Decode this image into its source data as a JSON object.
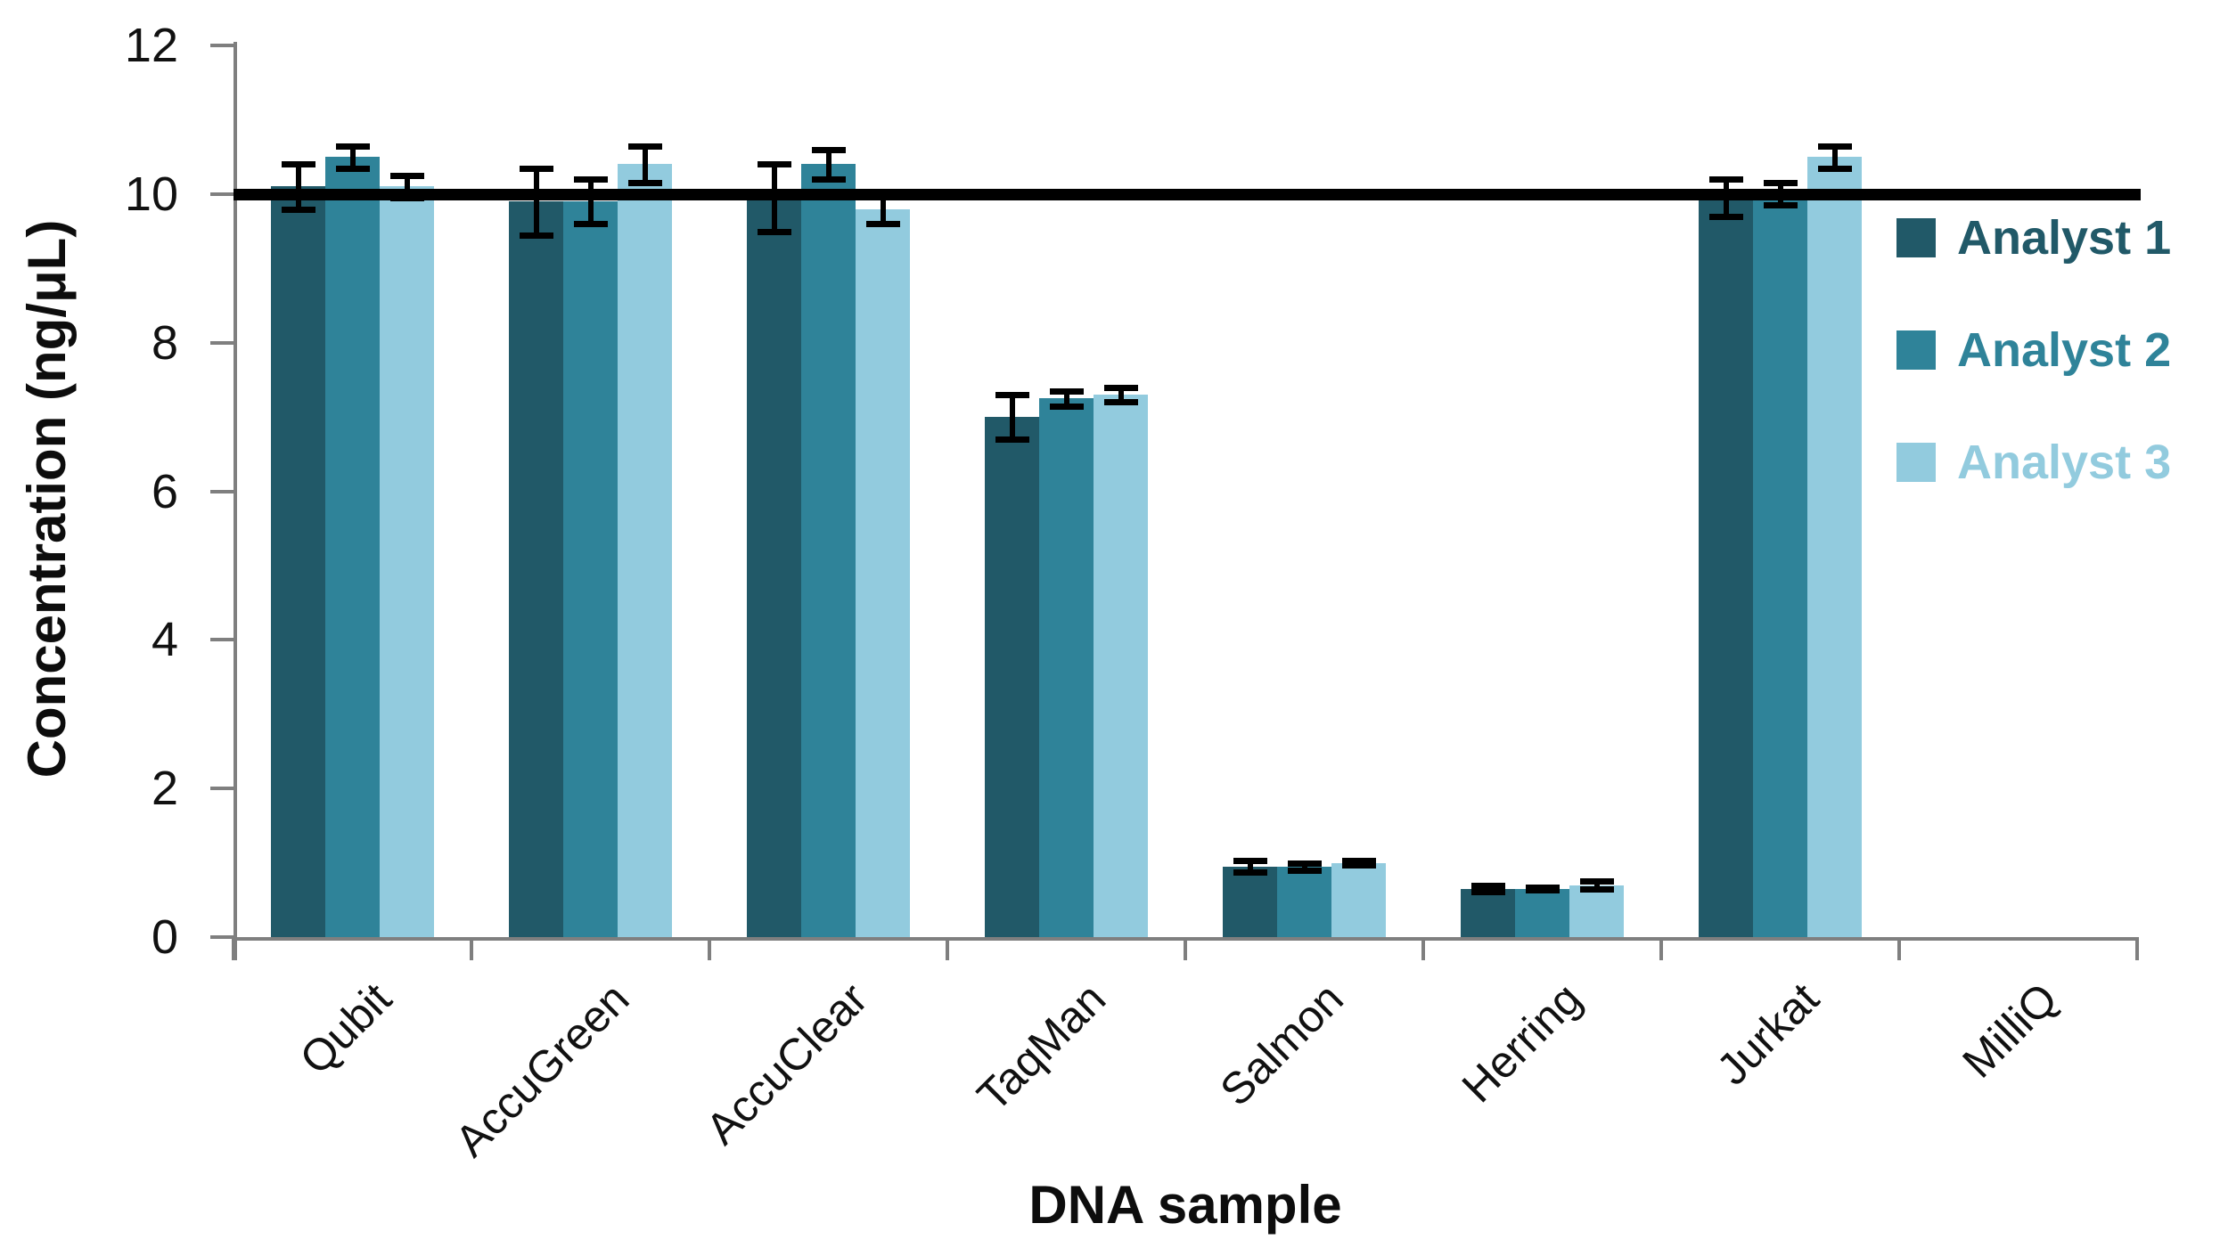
{
  "chart_data": {
    "type": "bar",
    "title": "",
    "xlabel": "DNA sample",
    "ylabel": "Concentration (ng/μL)",
    "ylim": [
      0,
      12
    ],
    "yticks": [
      0,
      2,
      4,
      6,
      8,
      10,
      12
    ],
    "grid": false,
    "legend_position": "inside-right",
    "reference_line_y": 10,
    "reference_line_color": "#000000",
    "axis_color": "#7f7f7f",
    "text_color": "#111111",
    "categories": [
      "Qubit",
      "AccuGreen",
      "AccuClear",
      "TaqMan",
      "Salmon",
      "Herring",
      "Jurkat",
      "MilliQ"
    ],
    "series": [
      {
        "name": "Analyst 1",
        "color": "#215968",
        "values": [
          10.1,
          9.9,
          9.95,
          7.0,
          0.95,
          0.65,
          9.95,
          0
        ],
        "errors": [
          0.3,
          0.45,
          0.45,
          0.3,
          0.08,
          0.04,
          0.25,
          0
        ]
      },
      {
        "name": "Analyst 2",
        "color": "#2f8399",
        "values": [
          10.5,
          9.9,
          10.4,
          7.25,
          0.95,
          0.65,
          10.0,
          0
        ],
        "errors": [
          0.15,
          0.3,
          0.2,
          0.1,
          0.05,
          0.02,
          0.15,
          0
        ]
      },
      {
        "name": "Analyst 3",
        "color": "#92cbde",
        "values": [
          10.1,
          10.4,
          9.8,
          7.3,
          1.0,
          0.7,
          10.5,
          0
        ],
        "errors": [
          0.15,
          0.25,
          0.2,
          0.1,
          0.03,
          0.05,
          0.15,
          0
        ]
      }
    ]
  }
}
